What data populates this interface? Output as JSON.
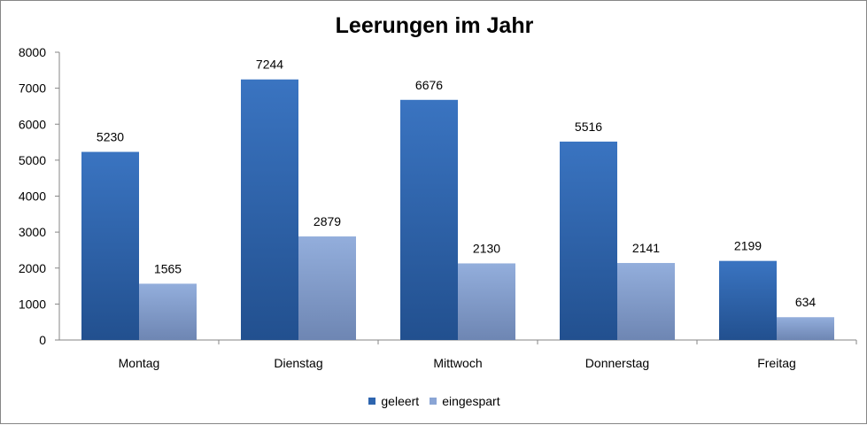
{
  "chart_data": {
    "type": "bar",
    "title": "Leerungen im Jahr",
    "xlabel": "",
    "ylabel": "",
    "categories": [
      "Montag",
      "Dienstag",
      "Mittwoch",
      "Donnerstag",
      "Freitag"
    ],
    "series": [
      {
        "name": "geleert",
        "values": [
          5230,
          7244,
          6676,
          5516,
          2199
        ],
        "color": "#2E65AF"
      },
      {
        "name": "eingespart",
        "values": [
          1565,
          2879,
          2130,
          2141,
          634
        ],
        "color": "#8AA5D5"
      }
    ],
    "ylim": [
      0,
      8000
    ],
    "yticks": [
      "0",
      "1000",
      "2000",
      "3000",
      "4000",
      "5000",
      "6000",
      "7000",
      "8000"
    ],
    "grid": false,
    "legend_position": "bottom",
    "data_labels": true
  }
}
